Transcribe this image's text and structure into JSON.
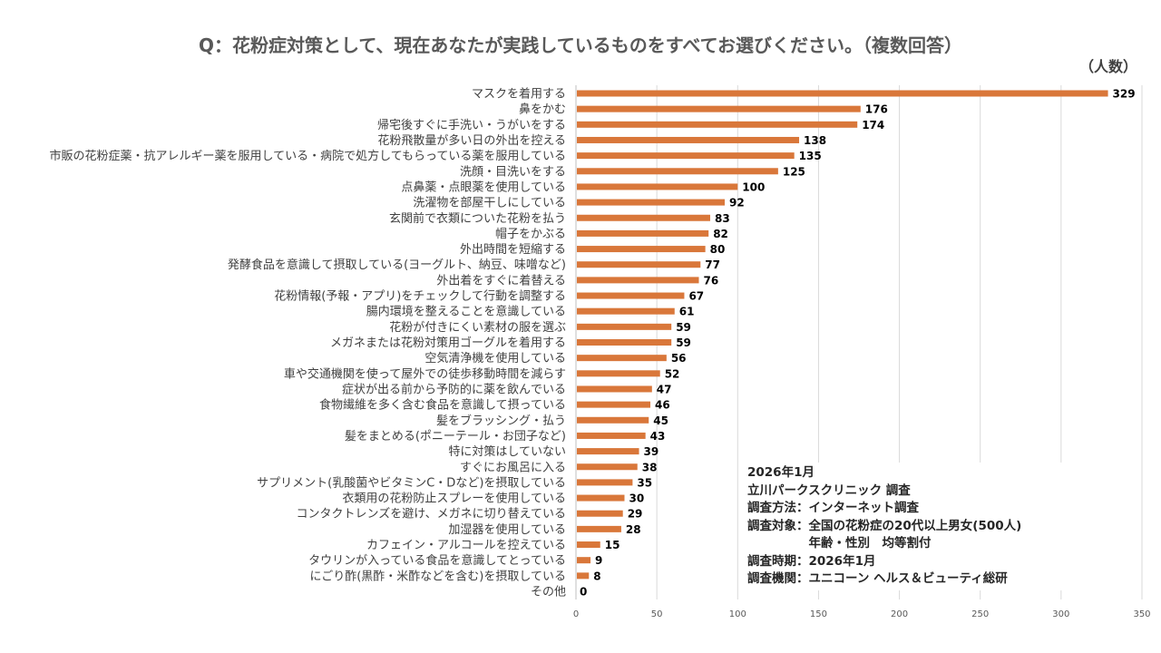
{
  "chart_data": {
    "type": "bar",
    "orientation": "horizontal",
    "title": "Q：花粉症対策として、現在あなたが実践しているものをすべてお選びください。（複数回答）",
    "unit_label": "（人数）",
    "xlim": [
      0,
      350
    ],
    "xticks": [
      0,
      50,
      100,
      150,
      200,
      250,
      300,
      350
    ],
    "grid": true,
    "bar_color": "#D9773A",
    "categories": [
      "マスクを着用する",
      "鼻をかむ",
      "帰宅後すぐに手洗い・うがいをする",
      "花粉飛散量が多い日の外出を控える",
      "市販の花粉症薬・抗アレルギー薬を服用している・病院で処方してもらっている薬を服用している",
      "洗顔・目洗いをする",
      "点鼻薬・点眼薬を使用している",
      "洗濯物を部屋干しにしている",
      "玄関前で衣類についた花粉を払う",
      "帽子をかぶる",
      "外出時間を短縮する",
      "発酵食品を意識して摂取している(ヨーグルト、納豆、味噌など)",
      "外出着をすぐに着替える",
      "花粉情報(予報・アプリ)をチェックして行動を調整する",
      "腸内環境を整えることを意識している",
      "花粉が付きにくい素材の服を選ぶ",
      "メガネまたは花粉対策用ゴーグルを着用する",
      "空気清浄機を使用している",
      "車や交通機関を使って屋外での徒歩移動時間を減らす",
      "症状が出る前から予防的に薬を飲んでいる",
      "食物繊維を多く含む食品を意識して摂っている",
      "髪をブラッシング・払う",
      "髪をまとめる(ポニーテール・お団子など)",
      "特に対策はしていない",
      "すぐにお風呂に入る",
      "サプリメント(乳酸菌やビタミンC・Dなど)を摂取している",
      "衣類用の花粉防止スプレーを使用している",
      "コンタクトレンズを避け、メガネに切り替えている",
      "加湿器を使用している",
      "カフェイン・アルコールを控えている",
      "タウリンが入っている食品を意識してとっている",
      "にごり酢(黒酢・米酢などを含む)を摂取している",
      "その他"
    ],
    "values": [
      329,
      176,
      174,
      138,
      135,
      125,
      100,
      92,
      83,
      82,
      80,
      77,
      76,
      67,
      61,
      59,
      59,
      56,
      52,
      47,
      46,
      45,
      43,
      39,
      38,
      35,
      30,
      29,
      28,
      15,
      9,
      8,
      0
    ]
  },
  "note": [
    "2026年1月",
    "立川パークスクリニック 調査",
    "調査方法：インターネット調査",
    "調査対象：全国の花粉症の20代以上男女(500人)",
    "　　　　　年齢・性別　均等割付",
    "調査時期：2026年1月",
    "調査機関：ユニコーン ヘルス＆ビューティ総研"
  ]
}
